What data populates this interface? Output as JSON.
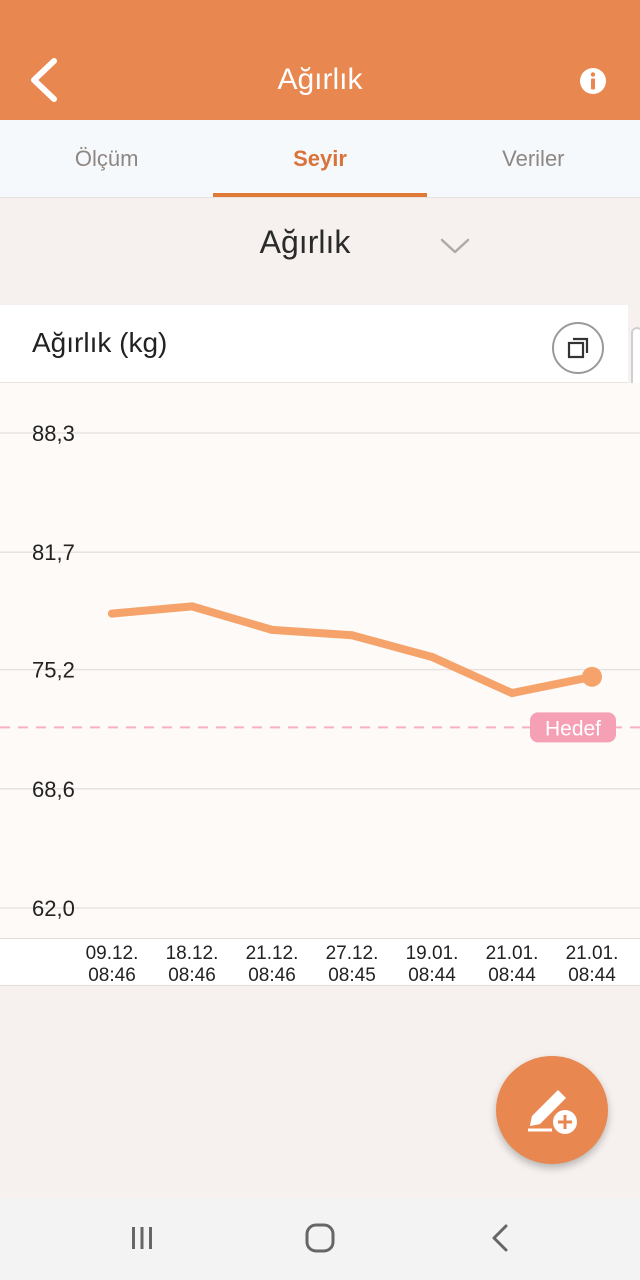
{
  "header": {
    "title": "Ağırlık",
    "back_icon": "chevron-left-icon",
    "info_icon": "info-icon",
    "color": "#e8874f"
  },
  "tabs": [
    {
      "label": "Ölçüm",
      "active": false
    },
    {
      "label": "Seyir",
      "active": true
    },
    {
      "label": "Veriler",
      "active": false
    }
  ],
  "selector": {
    "value": "Ağırlık",
    "icon": "chevron-down-icon"
  },
  "chart_card": {
    "title": "Ağırlık (kg)",
    "expand_icon": "expand-icon"
  },
  "chart_data": {
    "type": "line",
    "ylabel": "",
    "xlabel": "",
    "ylim": [
      62.0,
      88.3
    ],
    "yticks": [
      "88,3",
      "81,7",
      "75,2",
      "68,6",
      "62,0"
    ],
    "ytick_values": [
      88.3,
      81.7,
      75.2,
      68.6,
      62.0
    ],
    "categories": [
      [
        "09.12.",
        "08:46"
      ],
      [
        "18.12.",
        "08:46"
      ],
      [
        "21.12.",
        "08:46"
      ],
      [
        "27.12.",
        "08:45"
      ],
      [
        "19.01.",
        "08:44"
      ],
      [
        "21.01.",
        "08:44"
      ],
      [
        "21.01.",
        "08:44"
      ]
    ],
    "series": [
      {
        "values": [
          78.3,
          78.7,
          77.4,
          77.1,
          75.9,
          73.9,
          74.8
        ],
        "color": "#f5a36a"
      }
    ],
    "goal": {
      "label": "Hedef",
      "value": 72.0,
      "color": "#f5a0b5"
    },
    "grid": true
  },
  "fab": {
    "icon": "edit-add-icon"
  },
  "navbar": {
    "recent_icon": "recent-apps-icon",
    "home_icon": "home-icon",
    "back_icon": "back-icon"
  }
}
